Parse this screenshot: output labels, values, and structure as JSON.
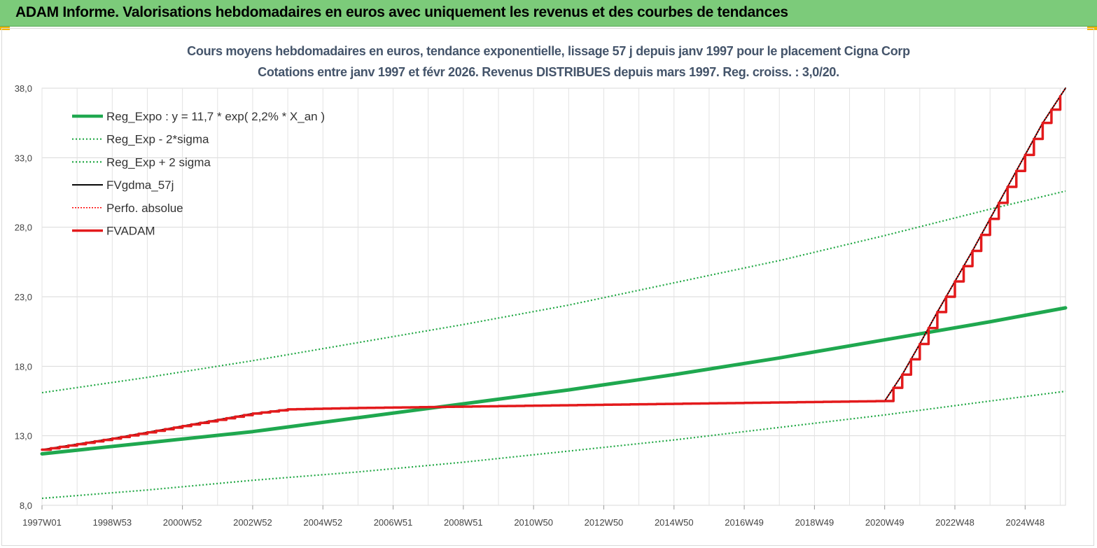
{
  "banner": {
    "title": "ADAM Informe. Valorisations hebdomadaires en euros avec uniquement les revenus et des courbes de tendances"
  },
  "colors": {
    "banner_bg": "#7ccb7a",
    "reg_expo": "#1fa84f",
    "bands": "#22a845",
    "fvgdma": "#000000",
    "perfo": "#ff0000",
    "fvadam": "#e31a1c",
    "title_text": "#44546a"
  },
  "chart_data": {
    "type": "line",
    "title": "Cours moyens hebdomadaires en euros, tendance exponentielle, lissage 57 j depuis janv 1997 pour le placement Cigna Corp",
    "subtitle": "Cotations entre janv 1997 et févr 2026. Revenus DISTRIBUES depuis mars 1997. Reg. croiss. : 3,0/20.",
    "xlabel": "",
    "ylabel": "",
    "x_range": [
      1997.0,
      2026.15
    ],
    "ylim": [
      8.0,
      38.0
    ],
    "y_ticks": [
      "8,0",
      "13,0",
      "18,0",
      "23,0",
      "28,0",
      "33,0",
      "38,0"
    ],
    "y_tick_values": [
      8,
      13,
      18,
      23,
      28,
      33,
      38
    ],
    "x_ticks": [
      "1997W01",
      "1998W53",
      "2000W52",
      "2002W52",
      "2004W52",
      "2006W51",
      "2008W51",
      "2010W50",
      "2012W50",
      "2014W50",
      "2016W49",
      "2018W49",
      "2020W49",
      "2022W48",
      "2024W48"
    ],
    "x_tick_values": [
      1997.0,
      1999.0,
      2001.0,
      2003.0,
      2005.0,
      2007.0,
      2009.0,
      2011.0,
      2013.0,
      2015.0,
      2017.0,
      2019.0,
      2021.0,
      2023.0,
      2025.0
    ],
    "grid": true,
    "legend_position": "top-left",
    "series": [
      {
        "name": "Reg_Expo : y = 11,7 * exp( 2,2% *  X_an )",
        "style": "solid-thick",
        "x": [
          1997.0,
          2000.0,
          2003.0,
          2006.0,
          2009.0,
          2012.0,
          2015.0,
          2018.0,
          2021.0,
          2024.0,
          2026.15
        ],
        "values": [
          11.7,
          12.5,
          13.3,
          14.3,
          15.3,
          16.3,
          17.4,
          18.6,
          19.9,
          21.2,
          22.2
        ]
      },
      {
        "name": "Reg_Exp - 2*sigma",
        "style": "dotted",
        "x": [
          1997.0,
          2000.0,
          2003.0,
          2006.0,
          2009.0,
          2012.0,
          2015.0,
          2018.0,
          2021.0,
          2024.0,
          2026.15
        ],
        "values": [
          8.5,
          9.1,
          9.8,
          10.4,
          11.1,
          11.9,
          12.7,
          13.6,
          14.5,
          15.5,
          16.2
        ]
      },
      {
        "name": "Reg_Exp + 2 sigma",
        "style": "dotted",
        "x": [
          1997.0,
          2000.0,
          2003.0,
          2006.0,
          2009.0,
          2012.0,
          2015.0,
          2018.0,
          2021.0,
          2024.0,
          2026.15
        ],
        "values": [
          16.1,
          17.2,
          18.4,
          19.7,
          21.0,
          22.4,
          24.0,
          25.6,
          27.4,
          29.3,
          30.6
        ]
      },
      {
        "name": "FVgdma_57j",
        "style": "solid",
        "x": [
          1997.0,
          1999.0,
          2001.0,
          2003.0,
          2004.0,
          2006.0,
          2009.0,
          2012.0,
          2015.0,
          2018.0,
          2021.0,
          2021.5,
          2022.0,
          2022.5,
          2023.0,
          2023.5,
          2024.0,
          2024.5,
          2025.0,
          2025.5,
          2026.15
        ],
        "values": [
          12.0,
          12.8,
          13.7,
          14.6,
          14.9,
          15.0,
          15.1,
          15.2,
          15.3,
          15.4,
          15.5,
          17.4,
          19.6,
          21.9,
          24.1,
          26.3,
          28.6,
          30.9,
          33.2,
          35.5,
          38.0
        ]
      },
      {
        "name": "Perfo. absolue",
        "style": "dotted",
        "x": [
          1997.0,
          1999.0,
          2001.0,
          2003.0,
          2004.0,
          2006.0,
          2009.0,
          2012.0,
          2015.0,
          2018.0,
          2021.0,
          2021.5,
          2022.0,
          2022.5,
          2023.0,
          2023.5,
          2024.0,
          2024.5,
          2025.0,
          2025.5,
          2026.15
        ],
        "values": [
          12.0,
          12.8,
          13.7,
          14.6,
          14.9,
          15.0,
          15.1,
          15.2,
          15.3,
          15.4,
          15.5,
          17.4,
          19.6,
          21.9,
          24.1,
          26.3,
          28.6,
          30.9,
          33.2,
          35.5,
          38.0
        ]
      },
      {
        "name": "FVADAM",
        "style": "solid-thick",
        "x": [
          1997.0,
          1999.0,
          2001.0,
          2003.0,
          2004.0,
          2006.0,
          2009.0,
          2012.0,
          2015.0,
          2018.0,
          2021.0,
          2021.5,
          2022.0,
          2022.5,
          2023.0,
          2023.5,
          2024.0,
          2024.5,
          2025.0,
          2025.5,
          2026.15
        ],
        "values": [
          12.0,
          12.8,
          13.7,
          14.6,
          14.9,
          15.0,
          15.1,
          15.2,
          15.3,
          15.4,
          15.5,
          17.4,
          19.6,
          21.9,
          24.1,
          26.3,
          28.6,
          30.9,
          33.2,
          35.5,
          38.0
        ]
      }
    ]
  }
}
